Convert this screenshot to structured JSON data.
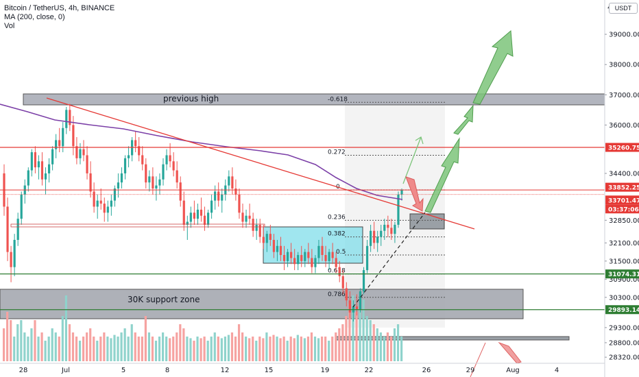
{
  "header": {
    "symbol_line": "Bitcoin / TetherUS, 4h, BINANCE",
    "ma_line": "MA (200, close, 0)",
    "vol_line": "Vol"
  },
  "unit": "USDT",
  "colors": {
    "up": "#26a69a",
    "down": "#ef5350",
    "up_vol": "#8fd3cc",
    "down_vol": "#f6a3a1",
    "ma": "#7b3fa7",
    "red_line": "#e53935",
    "green_line": "#2e7d32",
    "zone": "#787b86",
    "teal_zone": "#80deea",
    "arrow_green": "#7cc47a",
    "arrow_red": "#ef8a8a"
  },
  "chart_data": {
    "type": "candlestick",
    "title": "Bitcoin / TetherUS, 4h, BINANCE",
    "x_ticks": [
      "28",
      "Jul",
      "5",
      "8",
      "12",
      "15",
      "19",
      "22",
      "26",
      "29",
      "Aug",
      "4"
    ],
    "y_ticks": [
      39000,
      38000,
      37000,
      36000,
      34400,
      32850,
      32100,
      31500,
      30900,
      30300,
      29300,
      28800,
      28320
    ],
    "y_tick_labels": [
      "39000.00",
      "38000.00",
      "37000.00",
      "36000.00",
      "34400.00",
      "32850.00",
      "32100.00",
      "31500.00",
      "30900.00",
      "30300.00",
      "29300.00",
      "28800.00",
      "28320.00"
    ],
    "top_tick_label": "4",
    "price_labels": [
      {
        "value": "35260.75",
        "color": "red"
      },
      {
        "value": "33852.25",
        "color": "red"
      },
      {
        "value": "33701.47",
        "color": "red"
      },
      {
        "value": "03:37:06",
        "color": "red"
      },
      {
        "value": "31074.31",
        "color": "green"
      },
      {
        "value": "29893.14",
        "color": "green"
      }
    ],
    "fib_levels": [
      {
        "label": "-0.618",
        "price": 36750
      },
      {
        "label": "0.272",
        "price": 35000
      },
      {
        "label": "0",
        "price": 33852
      },
      {
        "label": "0.236",
        "price": 32850
      },
      {
        "label": "0.382",
        "price": 32300
      },
      {
        "label": "0.5",
        "price": 31700
      },
      {
        "label": "0.618",
        "price": 31074
      },
      {
        "label": "0.786",
        "price": 30300
      }
    ],
    "annotations": [
      "previous high",
      "30K support zone"
    ],
    "candles": [
      [
        34400,
        34700,
        33000,
        33300
      ],
      [
        33300,
        33600,
        31500,
        31800
      ],
      [
        31800,
        32000,
        30800,
        31300
      ],
      [
        31300,
        32400,
        31000,
        32200
      ],
      [
        32200,
        33100,
        32000,
        32900
      ],
      [
        32900,
        33800,
        32700,
        33700
      ],
      [
        33700,
        34200,
        33400,
        34000
      ],
      [
        34000,
        34600,
        33800,
        34500
      ],
      [
        34500,
        35200,
        34300,
        35100
      ],
      [
        35100,
        35300,
        34400,
        34600
      ],
      [
        34600,
        35000,
        34200,
        34800
      ],
      [
        34800,
        35100,
        34000,
        34200
      ],
      [
        34200,
        34600,
        33700,
        34400
      ],
      [
        34400,
        34900,
        34100,
        34700
      ],
      [
        34700,
        35300,
        34500,
        35200
      ],
      [
        35200,
        35700,
        34900,
        35500
      ],
      [
        35500,
        35900,
        35100,
        35300
      ],
      [
        35300,
        36100,
        35100,
        35900
      ],
      [
        35900,
        36600,
        35700,
        36500
      ],
      [
        36500,
        36700,
        35800,
        36000
      ],
      [
        36000,
        36300,
        35000,
        35300
      ],
      [
        35300,
        35600,
        34700,
        34900
      ],
      [
        34900,
        35400,
        34700,
        35200
      ],
      [
        35200,
        35500,
        34800,
        35000
      ],
      [
        35000,
        35300,
        34200,
        34400
      ],
      [
        34400,
        34800,
        33600,
        33800
      ],
      [
        33800,
        34100,
        33100,
        33300
      ],
      [
        33300,
        33700,
        32900,
        33500
      ],
      [
        33500,
        33900,
        33200,
        33400
      ],
      [
        33400,
        33600,
        32800,
        33100
      ],
      [
        33100,
        33500,
        32800,
        33300
      ],
      [
        33300,
        33700,
        33000,
        33500
      ],
      [
        33500,
        34000,
        33300,
        33900
      ],
      [
        33900,
        34400,
        33600,
        34100
      ],
      [
        34100,
        34600,
        33900,
        34400
      ],
      [
        34400,
        35000,
        34200,
        34900
      ],
      [
        34900,
        35300,
        34600,
        35000
      ],
      [
        35000,
        35600,
        34800,
        35500
      ],
      [
        35500,
        35800,
        35100,
        35300
      ],
      [
        35300,
        35600,
        34800,
        35000
      ],
      [
        35000,
        35300,
        34500,
        34700
      ],
      [
        34700,
        34900,
        33900,
        34100
      ],
      [
        34100,
        34500,
        33800,
        34300
      ],
      [
        34300,
        34600,
        33700,
        33900
      ],
      [
        33900,
        34300,
        33500,
        34000
      ],
      [
        34000,
        34400,
        33700,
        34200
      ],
      [
        34200,
        34900,
        34000,
        34700
      ],
      [
        34700,
        35200,
        34500,
        35000
      ],
      [
        35000,
        35400,
        34600,
        34800
      ],
      [
        34800,
        35100,
        34300,
        34500
      ],
      [
        34500,
        34800,
        33900,
        34100
      ],
      [
        34100,
        34300,
        33300,
        33500
      ],
      [
        33500,
        33800,
        32500,
        32700
      ],
      [
        32700,
        33000,
        32200,
        32800
      ],
      [
        32800,
        33300,
        32600,
        33100
      ],
      [
        33100,
        33500,
        32700,
        32900
      ],
      [
        32900,
        33400,
        32700,
        33200
      ],
      [
        33200,
        33600,
        32800,
        33000
      ],
      [
        33000,
        33300,
        32500,
        32700
      ],
      [
        32700,
        33200,
        32600,
        33100
      ],
      [
        33100,
        33700,
        32900,
        33500
      ],
      [
        33500,
        34000,
        33200,
        33800
      ],
      [
        33800,
        34100,
        33300,
        33500
      ],
      [
        33500,
        33900,
        33100,
        33700
      ],
      [
        33700,
        34200,
        33500,
        34000
      ],
      [
        34000,
        34500,
        33800,
        34300
      ],
      [
        34300,
        34600,
        33700,
        33900
      ],
      [
        33900,
        34200,
        33500,
        33700
      ],
      [
        33700,
        33900,
        32900,
        33100
      ],
      [
        33100,
        33400,
        32600,
        32800
      ],
      [
        32800,
        33200,
        32600,
        33000
      ],
      [
        33000,
        33400,
        32700,
        32900
      ],
      [
        32900,
        33100,
        32300,
        32500
      ],
      [
        32500,
        32900,
        32200,
        32700
      ],
      [
        32700,
        32900,
        32100,
        32300
      ],
      [
        32300,
        32700,
        31900,
        32100
      ],
      [
        32100,
        32500,
        31800,
        32400
      ],
      [
        32400,
        32700,
        32000,
        32200
      ],
      [
        32200,
        32400,
        31600,
        31800
      ],
      [
        31800,
        32200,
        31500,
        32000
      ],
      [
        32000,
        32300,
        31500,
        31700
      ],
      [
        31700,
        32000,
        31200,
        31500
      ],
      [
        31500,
        31900,
        31300,
        31800
      ],
      [
        31800,
        32100,
        31400,
        31600
      ],
      [
        31600,
        31900,
        31200,
        31400
      ],
      [
        31400,
        31800,
        31200,
        31700
      ],
      [
        31700,
        32000,
        31300,
        31500
      ],
      [
        31500,
        31900,
        31300,
        31800
      ],
      [
        31800,
        32100,
        31400,
        31600
      ],
      [
        31600,
        31900,
        31100,
        31300
      ],
      [
        31300,
        31700,
        31100,
        31600
      ],
      [
        31600,
        32200,
        31400,
        32000
      ],
      [
        32000,
        32300,
        31500,
        31700
      ],
      [
        31700,
        32000,
        31300,
        31500
      ],
      [
        31500,
        31900,
        31200,
        31800
      ],
      [
        31800,
        32100,
        31400,
        31600
      ],
      [
        31600,
        31800,
        31100,
        31300
      ],
      [
        31300,
        31500,
        30800,
        31000
      ],
      [
        31000,
        31200,
        30400,
        30600
      ],
      [
        30600,
        30800,
        30000,
        30200
      ],
      [
        30200,
        30500,
        29600,
        29800
      ],
      [
        29800,
        30200,
        29500,
        30000
      ],
      [
        30000,
        30400,
        29700,
        29900
      ],
      [
        29900,
        30600,
        29800,
        30500
      ],
      [
        30500,
        31300,
        30400,
        31200
      ],
      [
        31200,
        32200,
        31100,
        32000
      ],
      [
        32000,
        32700,
        31800,
        32500
      ],
      [
        32500,
        32800,
        31900,
        32100
      ],
      [
        32100,
        32500,
        31800,
        32300
      ],
      [
        32300,
        32700,
        32000,
        32500
      ],
      [
        32500,
        32900,
        32200,
        32700
      ],
      [
        32700,
        33000,
        32300,
        32600
      ],
      [
        32600,
        32900,
        32200,
        32400
      ],
      [
        32400,
        32800,
        32100,
        32700
      ],
      [
        32700,
        33800,
        32600,
        33700
      ],
      [
        33700,
        33900,
        33500,
        33850
      ]
    ],
    "volumes": [
      0.4,
      0.6,
      0.5,
      0.3,
      0.45,
      0.5,
      0.35,
      0.3,
      0.4,
      0.5,
      0.3,
      0.35,
      0.25,
      0.3,
      0.4,
      0.35,
      0.3,
      0.55,
      0.8,
      0.45,
      0.35,
      0.3,
      0.25,
      0.3,
      0.35,
      0.4,
      0.3,
      0.25,
      0.3,
      0.35,
      0.3,
      0.28,
      0.32,
      0.3,
      0.35,
      0.4,
      0.3,
      0.45,
      0.35,
      0.3,
      0.3,
      0.55,
      0.35,
      0.3,
      0.25,
      0.3,
      0.35,
      0.3,
      0.28,
      0.3,
      0.35,
      0.45,
      0.4,
      0.3,
      0.28,
      0.25,
      0.3,
      0.28,
      0.3,
      0.25,
      0.3,
      0.35,
      0.3,
      0.28,
      0.3,
      0.32,
      0.35,
      0.3,
      0.45,
      0.35,
      0.3,
      0.28,
      0.3,
      0.25,
      0.3,
      0.28,
      0.35,
      0.3,
      0.32,
      0.3,
      0.28,
      0.3,
      0.25,
      0.3,
      0.28,
      0.32,
      0.3,
      0.28,
      0.3,
      0.35,
      0.3,
      0.28,
      0.3,
      0.3,
      0.25,
      0.3,
      0.35,
      0.4,
      0.45,
      0.55,
      0.7,
      0.8,
      0.6,
      0.65,
      0.75,
      0.55,
      0.5,
      0.45,
      0.4,
      0.35,
      0.3,
      0.35,
      0.3,
      0.4,
      0.45,
      0.3
    ]
  }
}
